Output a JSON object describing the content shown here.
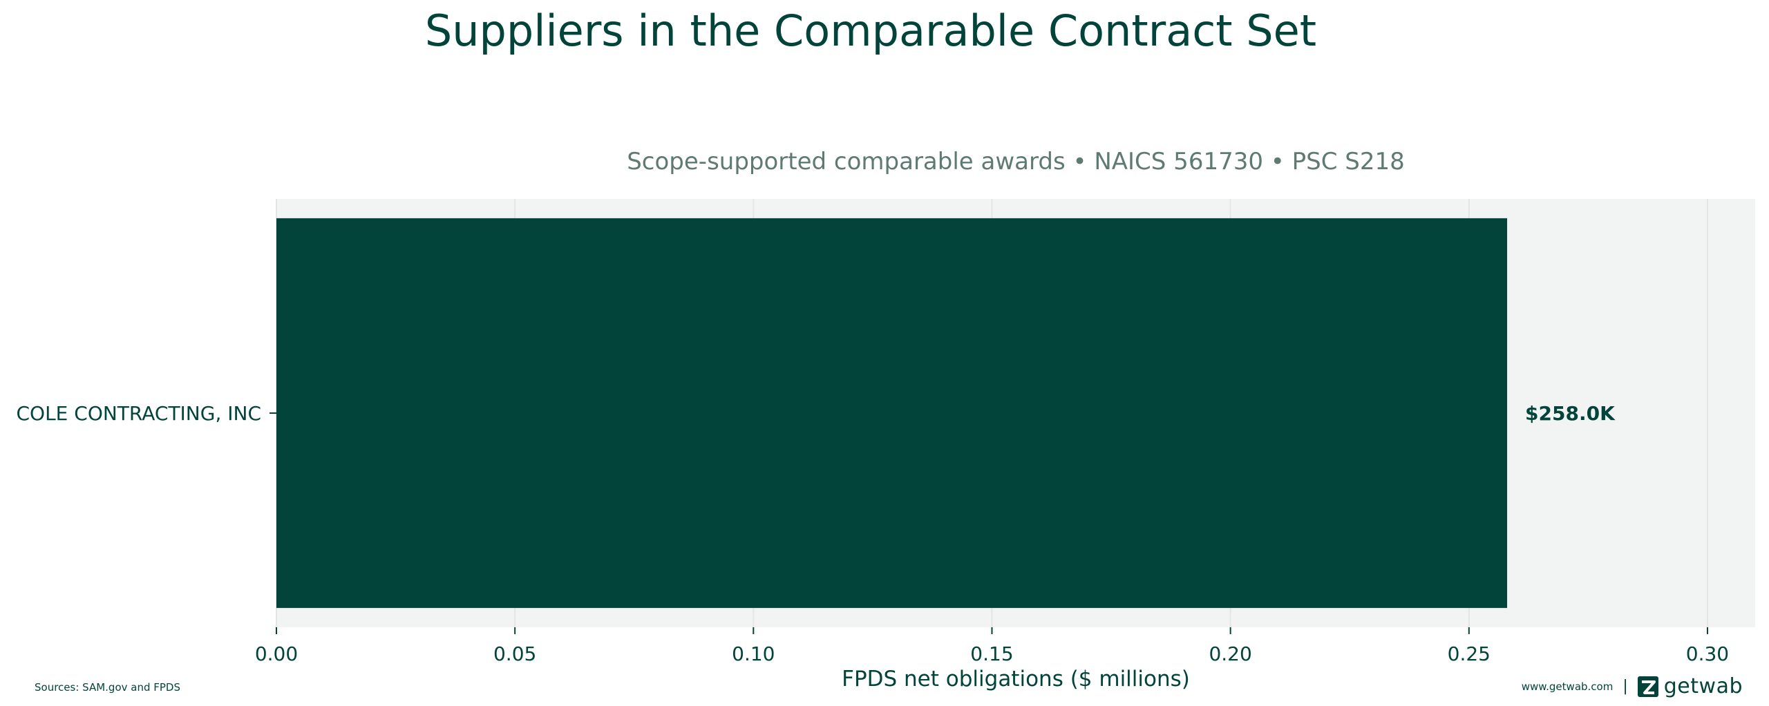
{
  "colors": {
    "bar": "#02443a",
    "plot_bg": "#f2f4f3",
    "grid": "#e2e6e4",
    "text": "#02443a",
    "subtitle": "#5e7a73"
  },
  "chart_data": {
    "type": "bar",
    "orientation": "horizontal",
    "title": "Suppliers in the Comparable Contract Set",
    "subtitle": "Scope-supported comparable awards • NAICS 561730 • PSC S218",
    "categories": [
      "COLE CONTRACTING, INC"
    ],
    "values": [
      0.258
    ],
    "data_labels": [
      "$258.0K"
    ],
    "xlabel": "FPDS net obligations ($ millions)",
    "ylabel": "",
    "xlim": [
      0,
      0.31
    ],
    "xticks": [
      0.0,
      0.05,
      0.1,
      0.15,
      0.2,
      0.25,
      0.3
    ],
    "xtick_labels": [
      "0.00",
      "0.05",
      "0.10",
      "0.15",
      "0.20",
      "0.25",
      "0.30"
    ],
    "grid": true,
    "legend": "none"
  },
  "footer": {
    "sources": "Sources: SAM.gov and FPDS",
    "url": "www.getwab.com",
    "separator": "|",
    "brand": "getwab",
    "brand_icon": "getwab-logo-icon"
  }
}
